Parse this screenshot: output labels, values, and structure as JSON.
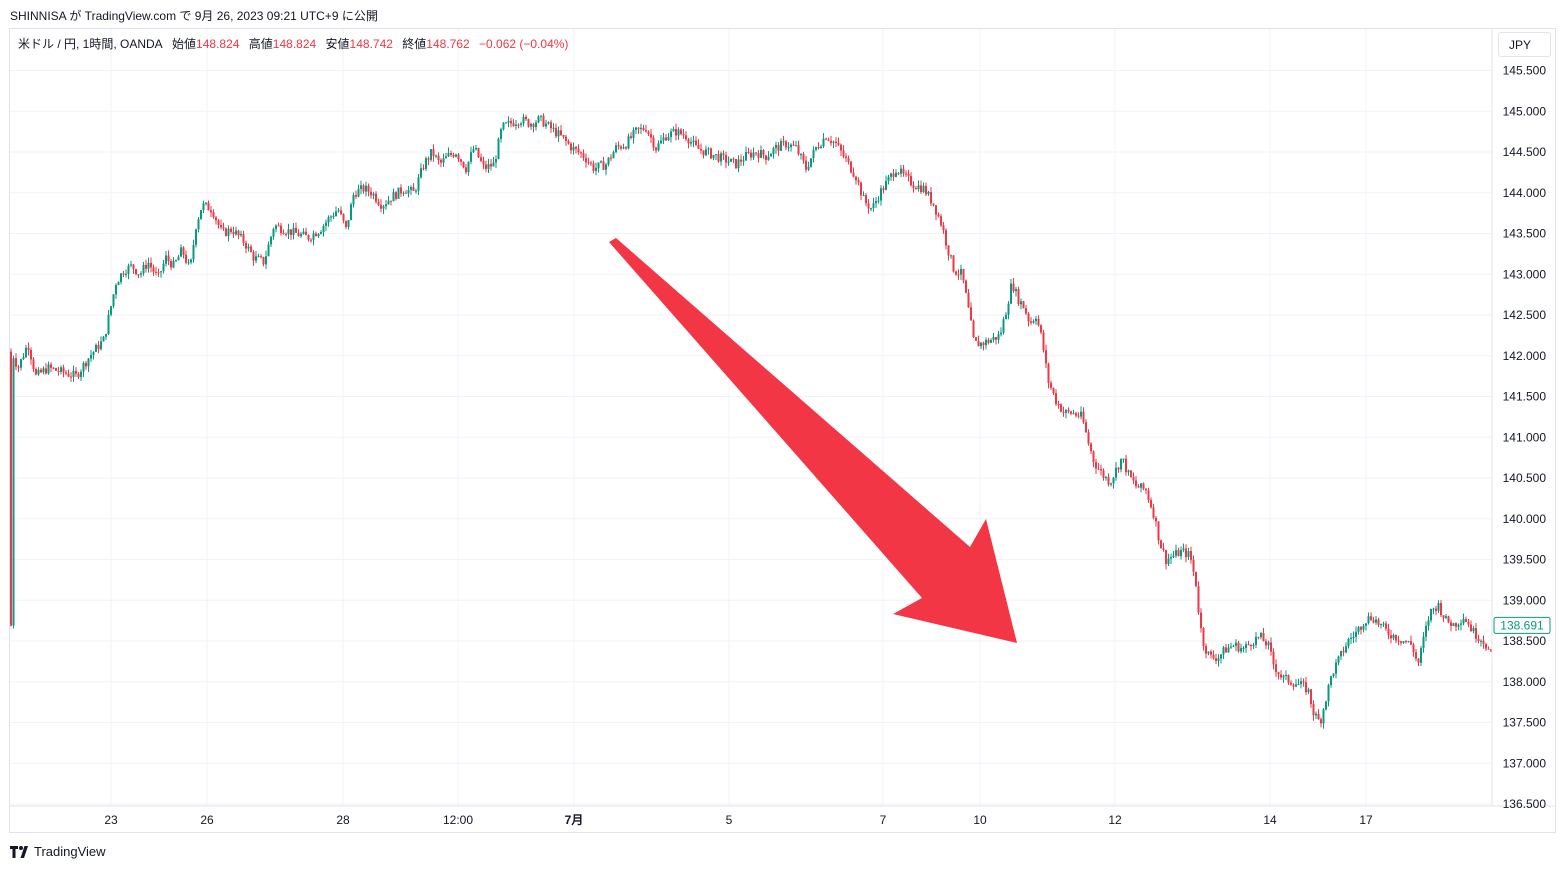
{
  "header": {
    "text": "SHINNISA が TradingView.com で 9月 26, 2023 09:21 UTC+9 に公開"
  },
  "legend": {
    "symbol": "米ドル / 円, 1時間, OANDA",
    "open_label": "始値",
    "open": "148.824",
    "high_label": "高値",
    "high": "148.824",
    "low_label": "安値",
    "low": "148.742",
    "close_label": "終値",
    "close": "148.762",
    "change": "−0.062 (−0.04%)"
  },
  "currency_button": "JPY",
  "footer": {
    "brand": "TradingView"
  },
  "colors": {
    "up": "#089981",
    "down": "#f23645",
    "arrow": "#f23645",
    "grid": "#f0f3fa",
    "text": "#131722"
  },
  "chart_data": {
    "type": "candlestick",
    "symbol": "USD/JPY",
    "interval": "1h",
    "ylim": [
      136.5,
      145.75
    ],
    "y_ticks": [
      "145.500",
      "145.000",
      "144.500",
      "144.000",
      "143.500",
      "143.000",
      "142.500",
      "142.000",
      "141.500",
      "141.000",
      "140.500",
      "140.000",
      "139.500",
      "139.000",
      "138.500",
      "138.000",
      "137.500",
      "137.000",
      "136.500"
    ],
    "x_ticks": [
      {
        "label": "23",
        "x": 111,
        "bold": false
      },
      {
        "label": "26",
        "x": 207,
        "bold": false
      },
      {
        "label": "28",
        "x": 343,
        "bold": false
      },
      {
        "label": "12:00",
        "x": 458,
        "bold": false
      },
      {
        "label": "7月",
        "x": 574,
        "bold": true
      },
      {
        "label": "5",
        "x": 729,
        "bold": false
      },
      {
        "label": "7",
        "x": 883,
        "bold": false
      },
      {
        "label": "10",
        "x": 980,
        "bold": false
      },
      {
        "label": "12",
        "x": 1115,
        "bold": false
      },
      {
        "label": "14",
        "x": 1270,
        "bold": false
      },
      {
        "label": "17",
        "x": 1366,
        "bold": false
      }
    ],
    "anchors": [
      [
        0,
        142.05
      ],
      [
        6,
        141.85
      ],
      [
        16,
        142.15
      ],
      [
        24,
        141.75
      ],
      [
        36,
        141.85
      ],
      [
        50,
        141.8
      ],
      [
        64,
        141.75
      ],
      [
        78,
        142.0
      ],
      [
        92,
        142.2
      ],
      [
        98,
        142.55
      ],
      [
        104,
        142.9
      ],
      [
        112,
        143.05
      ],
      [
        120,
        143.1
      ],
      [
        128,
        143.0
      ],
      [
        136,
        143.15
      ],
      [
        146,
        142.95
      ],
      [
        154,
        143.2
      ],
      [
        162,
        143.1
      ],
      [
        170,
        143.3
      ],
      [
        178,
        143.05
      ],
      [
        184,
        143.6
      ],
      [
        190,
        143.85
      ],
      [
        200,
        143.8
      ],
      [
        210,
        143.5
      ],
      [
        220,
        143.55
      ],
      [
        232,
        143.4
      ],
      [
        242,
        143.2
      ],
      [
        252,
        143.15
      ],
      [
        262,
        143.6
      ],
      [
        272,
        143.55
      ],
      [
        284,
        143.5
      ],
      [
        296,
        143.45
      ],
      [
        308,
        143.55
      ],
      [
        318,
        143.7
      ],
      [
        326,
        143.8
      ],
      [
        334,
        143.55
      ],
      [
        342,
        144.0
      ],
      [
        352,
        144.05
      ],
      [
        360,
        144.0
      ],
      [
        370,
        143.85
      ],
      [
        380,
        143.95
      ],
      [
        392,
        144.05
      ],
      [
        402,
        144.0
      ],
      [
        412,
        144.35
      ],
      [
        420,
        144.5
      ],
      [
        428,
        144.35
      ],
      [
        436,
        144.45
      ],
      [
        444,
        144.5
      ],
      [
        454,
        144.3
      ],
      [
        462,
        144.55
      ],
      [
        472,
        144.3
      ],
      [
        482,
        144.35
      ],
      [
        490,
        144.8
      ],
      [
        498,
        144.85
      ],
      [
        508,
        144.9
      ],
      [
        518,
        144.85
      ],
      [
        528,
        144.9
      ],
      [
        538,
        144.8
      ],
      [
        548,
        144.7
      ],
      [
        560,
        144.55
      ],
      [
        572,
        144.45
      ],
      [
        582,
        144.3
      ],
      [
        594,
        144.35
      ],
      [
        604,
        144.55
      ],
      [
        614,
        144.6
      ],
      [
        624,
        144.75
      ],
      [
        634,
        144.8
      ],
      [
        644,
        144.55
      ],
      [
        654,
        144.7
      ],
      [
        664,
        144.75
      ],
      [
        674,
        144.7
      ],
      [
        684,
        144.55
      ],
      [
        694,
        144.5
      ],
      [
        704,
        144.45
      ],
      [
        714,
        144.4
      ],
      [
        724,
        144.35
      ],
      [
        734,
        144.45
      ],
      [
        744,
        144.5
      ],
      [
        754,
        144.45
      ],
      [
        764,
        144.55
      ],
      [
        774,
        144.6
      ],
      [
        784,
        144.55
      ],
      [
        794,
        144.3
      ],
      [
        804,
        144.55
      ],
      [
        814,
        144.7
      ],
      [
        824,
        144.6
      ],
      [
        834,
        144.4
      ],
      [
        844,
        144.2
      ],
      [
        852,
        143.9
      ],
      [
        860,
        143.8
      ],
      [
        868,
        144.0
      ],
      [
        876,
        144.15
      ],
      [
        884,
        144.3
      ],
      [
        892,
        144.2
      ],
      [
        902,
        144.1
      ],
      [
        912,
        144.05
      ],
      [
        922,
        143.85
      ],
      [
        930,
        143.6
      ],
      [
        936,
        143.3
      ],
      [
        942,
        143.05
      ],
      [
        950,
        143.0
      ],
      [
        956,
        142.6
      ],
      [
        962,
        142.15
      ],
      [
        970,
        142.15
      ],
      [
        980,
        142.2
      ],
      [
        988,
        142.25
      ],
      [
        994,
        142.55
      ],
      [
        1000,
        142.9
      ],
      [
        1006,
        142.7
      ],
      [
        1012,
        142.6
      ],
      [
        1018,
        142.4
      ],
      [
        1024,
        142.5
      ],
      [
        1030,
        142.2
      ],
      [
        1036,
        141.7
      ],
      [
        1044,
        141.45
      ],
      [
        1052,
        141.3
      ],
      [
        1060,
        141.3
      ],
      [
        1070,
        141.25
      ],
      [
        1076,
        140.95
      ],
      [
        1082,
        140.7
      ],
      [
        1090,
        140.55
      ],
      [
        1098,
        140.45
      ],
      [
        1104,
        140.6
      ],
      [
        1110,
        140.75
      ],
      [
        1116,
        140.55
      ],
      [
        1124,
        140.4
      ],
      [
        1134,
        140.35
      ],
      [
        1142,
        140.05
      ],
      [
        1148,
        139.7
      ],
      [
        1154,
        139.5
      ],
      [
        1162,
        139.55
      ],
      [
        1170,
        139.6
      ],
      [
        1178,
        139.55
      ],
      [
        1184,
        139.2
      ],
      [
        1188,
        138.7
      ],
      [
        1192,
        138.45
      ],
      [
        1198,
        138.3
      ],
      [
        1206,
        138.3
      ],
      [
        1214,
        138.4
      ],
      [
        1222,
        138.45
      ],
      [
        1232,
        138.4
      ],
      [
        1240,
        138.5
      ],
      [
        1248,
        138.55
      ],
      [
        1256,
        138.45
      ],
      [
        1262,
        138.2
      ],
      [
        1270,
        138.05
      ],
      [
        1280,
        138.0
      ],
      [
        1290,
        137.95
      ],
      [
        1296,
        137.9
      ],
      [
        1302,
        137.6
      ],
      [
        1308,
        137.5
      ],
      [
        1314,
        137.8
      ],
      [
        1320,
        138.1
      ],
      [
        1328,
        138.3
      ],
      [
        1336,
        138.5
      ],
      [
        1344,
        138.6
      ],
      [
        1352,
        138.75
      ],
      [
        1360,
        138.8
      ],
      [
        1368,
        138.7
      ],
      [
        1376,
        138.6
      ],
      [
        1384,
        138.55
      ],
      [
        1392,
        138.5
      ],
      [
        1400,
        138.45
      ],
      [
        1406,
        138.2
      ],
      [
        1412,
        138.55
      ],
      [
        1418,
        138.85
      ],
      [
        1426,
        138.95
      ],
      [
        1434,
        138.75
      ],
      [
        1442,
        138.7
      ],
      [
        1452,
        138.8
      ],
      [
        1462,
        138.6
      ],
      [
        1472,
        138.5
      ],
      [
        1480,
        138.3
      ],
      [
        1488,
        138.2
      ],
      [
        1496,
        138.69
      ]
    ],
    "last_price": "138.691",
    "last_price_y": 138.691
  }
}
